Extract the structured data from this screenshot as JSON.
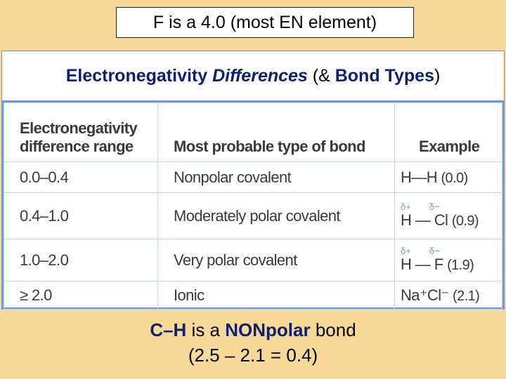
{
  "header_box": "F is a 4.0 (most EN element)",
  "title": {
    "part_1": "Electronegativity ",
    "part_2": "Differences",
    "part_3": " (& ",
    "part_4": "Bond Types",
    "part_5": ")"
  },
  "table": {
    "columns": [
      [
        "Electronegativity",
        "difference range"
      ],
      "Most probable type of bond",
      "Example"
    ],
    "rows": [
      {
        "range": "0.0–0.4",
        "bond_type": "Nonpolar covalent",
        "example": {
          "formula": "H—H",
          "value": "(0.0)"
        }
      },
      {
        "range": "0.4–1.0",
        "bond_type": "Moderately polar covalent",
        "example": {
          "charges": [
            "δ+",
            "δ−"
          ],
          "formula": "H — Cl",
          "value": "(0.9)"
        }
      },
      {
        "range": "1.0–2.0",
        "bond_type": "Very polar covalent",
        "example": {
          "charges": [
            "δ+",
            "δ−"
          ],
          "formula": "H — F",
          "value": "(1.9)"
        }
      },
      {
        "range": "≥ 2.0",
        "bond_type": "Ionic",
        "example": {
          "formula": "Na⁺Cl⁻",
          "value": "(2.1)"
        }
      }
    ]
  },
  "footer": {
    "line_1": {
      "part_1": "C–H",
      "part_2": " is a ",
      "part_3": "NONpolar",
      "part_4": " bond"
    },
    "line_2": "(2.5 – 2.1 = 0.4)"
  }
}
